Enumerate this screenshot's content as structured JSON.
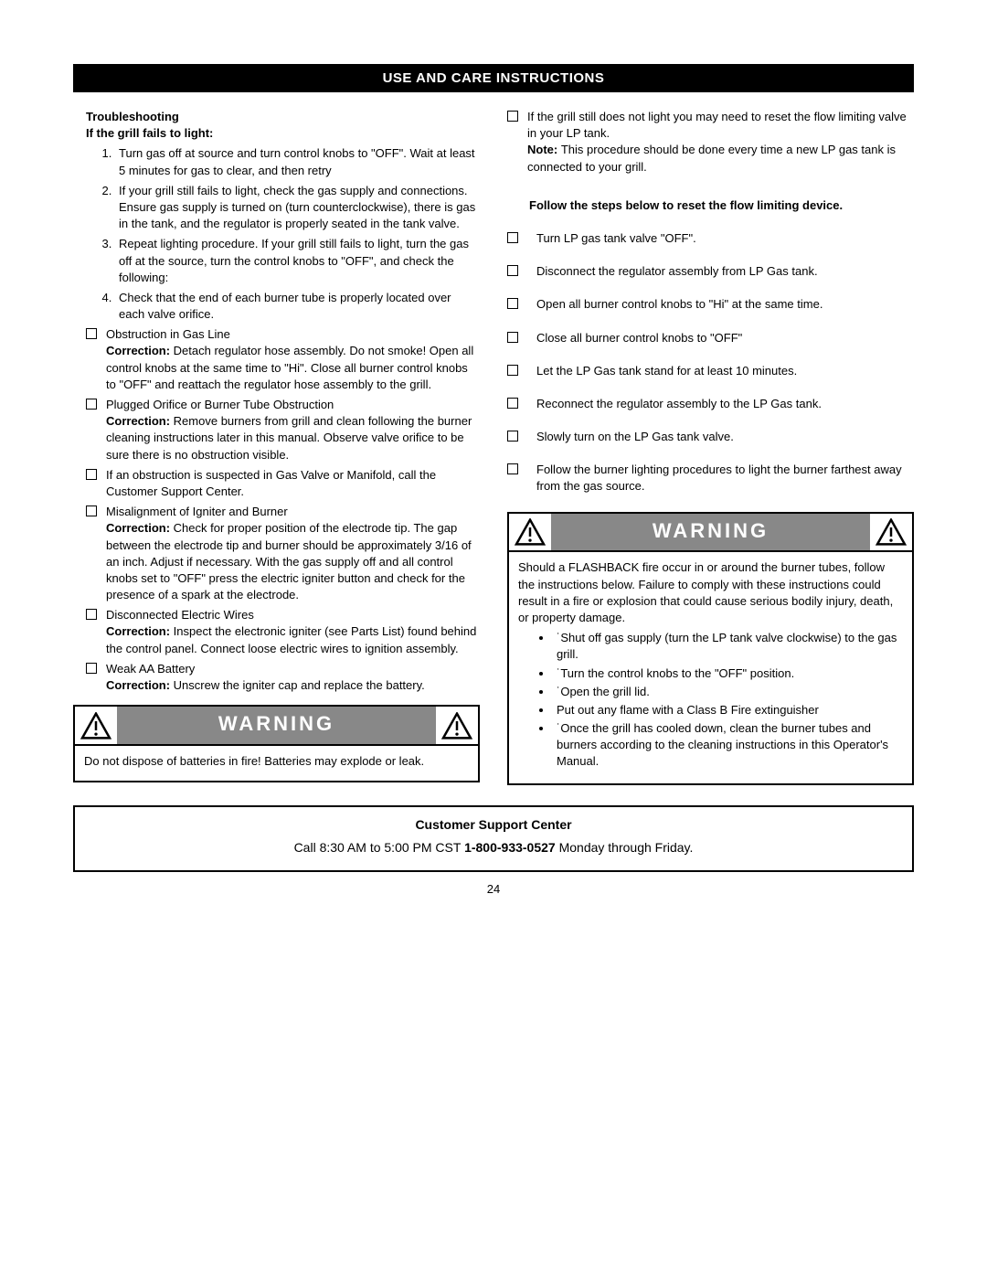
{
  "header": "USE AND CARE INSTRUCTIONS",
  "left": {
    "troubleshooting": "Troubleshooting",
    "failsToLight": "If the grill fails to light:",
    "steps": [
      "Turn gas off at source and turn control knobs to \"OFF\". Wait at least 5 minutes for gas to clear, and then retry",
      "If your grill still fails to light, check the gas supply and connections. Ensure gas supply is turned on (turn counterclockwise), there is gas in the tank, and the regulator is properly seated in the tank valve.",
      "Repeat lighting procedure. If your grill still fails to light, turn the gas off at the source, turn the control knobs to \"OFF\", and check the following:",
      "Check that the end of each burner tube is properly located over each valve orifice."
    ],
    "checks": [
      {
        "title": "Obstruction in Gas Line",
        "correction": "Detach regulator hose assembly. Do not smoke! Open all control knobs at the same time to \"Hi\". Close all burner control knobs to \"OFF\" and reattach the regulator hose assembly to the grill."
      },
      {
        "title": "Plugged Orifice or Burner Tube Obstruction",
        "correction": "Remove burners from grill and clean following the burner cleaning instructions later in this manual. Observe valve orifice to be sure there is no obstruction visible."
      },
      {
        "title": "If an obstruction is suspected in Gas Valve or Manifold, call the Customer Support Center.",
        "correction": null
      },
      {
        "title": "Misalignment of Igniter and Burner",
        "correction": "Check for proper position of the electrode tip. The gap between the electrode tip and burner should be approximately 3/16 of an inch. Adjust if necessary. With the gas supply off and all control knobs set to \"OFF\" press the electric igniter button and check for the presence of a spark at the electrode."
      },
      {
        "title": "Disconnected Electric Wires",
        "correction": "Inspect the electronic igniter (see Parts List) found behind the control panel. Connect loose electric wires to ignition assembly."
      },
      {
        "title": "Weak AA Battery",
        "correction": "Unscrew the igniter cap and replace the battery."
      }
    ],
    "correctionLabel": "Correction: ",
    "warning": {
      "title": "WARNING",
      "body": "Do not dispose of batteries in fire! Batteries may explode or leak."
    }
  },
  "right": {
    "intro1": "If the grill still does not light you may need to reset the flow limiting valve in your LP tank.",
    "noteLabel": "Note: ",
    "intro2": "This procedure should be done every time a new LP gas tank is connected to your grill.",
    "resetHeading": "Follow the steps below to reset the flow limiting device.",
    "resetSteps": [
      "Turn LP gas tank valve \"OFF\".",
      "Disconnect the regulator assembly from LP Gas tank.",
      "Open all burner control knobs to \"Hi\" at the same time.",
      "Close all burner control knobs to \"OFF\"",
      "Let the LP Gas tank stand for at least 10 minutes.",
      "Reconnect the regulator assembly to the LP Gas tank.",
      "Slowly turn on the LP Gas tank valve.",
      "Follow the burner lighting procedures to light the burner farthest away from the gas source."
    ],
    "warning": {
      "title": "WARNING",
      "intro": "Should a FLASHBACK fire occur in or around the burner tubes, follow the instructions below. Failure to comply with these instructions could result in a fire or explosion that could cause serious bodily injury, death, or property damage.",
      "bullets": [
        "˙Shut off gas supply (turn the LP tank valve clockwise) to the gas grill.",
        "˙Turn the control knobs to the \"OFF\" position.",
        "˙Open the grill lid.",
        " Put out any flame with a Class B Fire extinguisher",
        "˙Once the grill has cooled down, clean the burner tubes and burners according to the cleaning instructions in this Operator's Manual."
      ]
    }
  },
  "support": {
    "title": "Customer Support Center",
    "pre": "Call 8:30 AM to 5:00 PM CST ",
    "phone": "1-800-933-0527",
    "post": " Monday through Friday."
  },
  "pageNum": "24",
  "colors": {
    "black": "#000000",
    "grey": "#888888",
    "white": "#ffffff"
  }
}
